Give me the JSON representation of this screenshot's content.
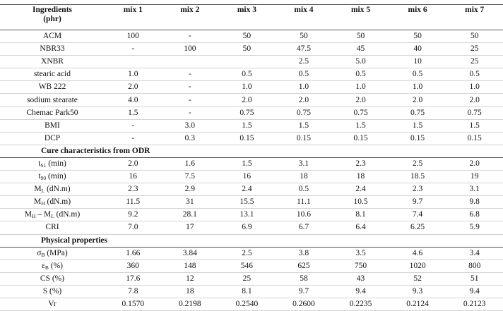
{
  "table": {
    "header": [
      "Ingredients",
      "(phr)"
    ],
    "columns": [
      "mix 1",
      "mix 2",
      "mix 3",
      "mix 4",
      "mix 5",
      "mix 6",
      "mix 7"
    ],
    "groups": [
      {
        "rows": [
          {
            "label": [
              "ACM"
            ],
            "cells": [
              "100",
              "-",
              "50",
              "50",
              "50",
              "50",
              "50"
            ]
          },
          {
            "label": [
              "NBR33"
            ],
            "cells": [
              "-",
              "100",
              "50",
              "47.5",
              "45",
              "40",
              "25"
            ]
          },
          {
            "label": [
              "XNBR"
            ],
            "cells": [
              null,
              null,
              null,
              "2.5",
              "5.0",
              "10",
              "25"
            ]
          },
          {
            "label": [
              "stearic acid"
            ],
            "cells": [
              "1.0",
              "-",
              "0.5",
              "0.5",
              "0.5",
              "0.5",
              "0.5"
            ]
          },
          {
            "label": [
              "WB 222"
            ],
            "cells": [
              "2.0",
              "-",
              "1.0",
              "1.0",
              "1.0",
              "1.0",
              "1.0"
            ]
          },
          {
            "label": [
              "sodium stearate"
            ],
            "cells": [
              "4.0",
              "-",
              "2.0",
              "2.0",
              "2.0",
              "2.0",
              "2.0"
            ]
          },
          {
            "label": [
              "Chemac Park50"
            ],
            "cells": [
              "1.5",
              "-",
              "0.75",
              "0.75",
              "0.75",
              "0.75",
              "0.75"
            ]
          },
          {
            "label": [
              "BMI"
            ],
            "cells": [
              "-",
              "3.0",
              "1.5",
              "1.5",
              "1.5",
              "1.5",
              "1.5"
            ]
          },
          {
            "label": [
              "DCP"
            ],
            "cells": [
              "-",
              "0.3",
              "0.15",
              "0.15",
              "0.15",
              "0.15",
              "0.15"
            ]
          }
        ]
      },
      {
        "title": "Cure characteristics from ODR",
        "rows": [
          {
            "label": [
              "t",
              "S1",
              " (min)"
            ],
            "cells": [
              "2.0",
              "1.6",
              "1.5",
              "3.1",
              "2.3",
              "2.5",
              "2.0"
            ]
          },
          {
            "label": [
              "t",
              "90",
              " (min)"
            ],
            "cells": [
              "16",
              "7.5",
              "16",
              "18",
              "18",
              "18.5",
              "19"
            ]
          },
          {
            "label": [
              "M",
              "L",
              " (dN.m)"
            ],
            "cells": [
              "2.3",
              "2.9",
              "2.4",
              "0.5",
              "2.4",
              "2.3",
              "3.1"
            ]
          },
          {
            "label": [
              "M",
              "H",
              " (dN.m)"
            ],
            "cells": [
              "11.5",
              "31",
              "15.5",
              "11.1",
              "10.5",
              "9.7",
              "9.8"
            ]
          },
          {
            "label": [
              "M",
              "H",
              " – M",
              "L",
              " (dN.m)"
            ],
            "cells": [
              "9.2",
              "28.1",
              "13.1",
              "10.6",
              "8.1",
              "7.4",
              "6.8"
            ]
          },
          {
            "label": [
              "CRI"
            ],
            "cells": [
              "7.0",
              "17",
              "6.9",
              "6.7",
              "6.4",
              "6.25",
              "5.9"
            ]
          }
        ]
      },
      {
        "title": "Physical properties",
        "rows": [
          {
            "label": [
              "σ",
              "B",
              " (MPa)"
            ],
            "cells": [
              "1.66",
              "3.84",
              "2.5",
              "3.8",
              "3.5",
              "4.6",
              "3.4"
            ]
          },
          {
            "label": [
              "ε",
              "B",
              " (%)"
            ],
            "cells": [
              "360",
              "148",
              "546",
              "625",
              "750",
              "1020",
              "800"
            ]
          },
          {
            "label": [
              "CS (%)"
            ],
            "cells": [
              "17.6",
              "12",
              "25",
              "58",
              "43",
              "52",
              "51"
            ]
          },
          {
            "label": [
              "S (%)"
            ],
            "cells": [
              "7.8",
              "18",
              "8.1",
              "9.7",
              "9.4",
              "9.3",
              "9.4"
            ]
          },
          {
            "label": [
              "Vr"
            ],
            "cells": [
              "0.1570",
              "0.2198",
              "0.2540",
              "0.2600",
              "0.2235",
              "0.2124",
              "0.2123"
            ]
          }
        ]
      }
    ]
  }
}
